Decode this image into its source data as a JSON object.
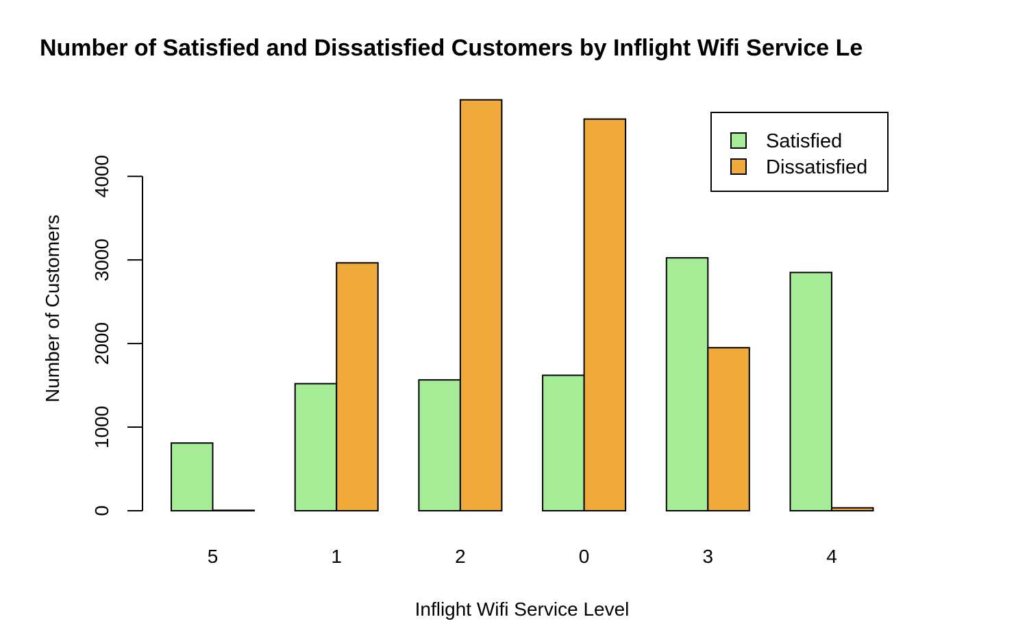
{
  "chart_data": {
    "type": "bar",
    "title": "Number of Satisfied and Dissatisfied Customers by Inflight Wifi Service Le",
    "xlabel": "Inflight Wifi Service Level",
    "ylabel": "Number of Customers",
    "categories": [
      "5",
      "1",
      "2",
      "0",
      "3",
      "4"
    ],
    "series": [
      {
        "name": "Satisfied",
        "color": "#A6EC97",
        "values": [
          810,
          1520,
          1565,
          1620,
          3025,
          2850
        ]
      },
      {
        "name": "Dissatisfied",
        "color": "#F0A93B",
        "values": [
          5,
          2965,
          4915,
          4685,
          1950,
          35
        ]
      }
    ],
    "yticks": [
      "0",
      "1000",
      "2000",
      "3000",
      "4000"
    ],
    "ylim": [
      0,
      4915
    ],
    "grid": false,
    "legend_position": "top-right",
    "barmode": "grouped"
  }
}
